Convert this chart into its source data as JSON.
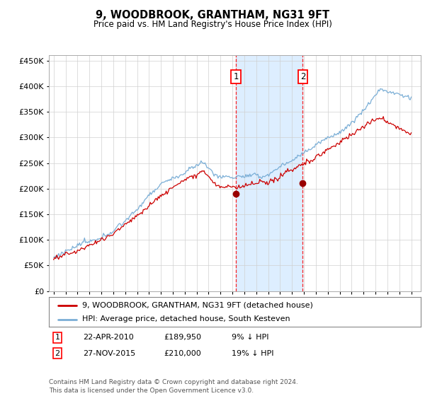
{
  "title": "9, WOODBROOK, GRANTHAM, NG31 9FT",
  "subtitle": "Price paid vs. HM Land Registry's House Price Index (HPI)",
  "legend_line1": "9, WOODBROOK, GRANTHAM, NG31 9FT (detached house)",
  "legend_line2": "HPI: Average price, detached house, South Kesteven",
  "footer": "Contains HM Land Registry data © Crown copyright and database right 2024.\nThis data is licensed under the Open Government Licence v3.0.",
  "sale1_label": "1",
  "sale1_date": "22-APR-2010",
  "sale1_price": "£189,950",
  "sale1_hpi": "9% ↓ HPI",
  "sale1_x": 2010.3,
  "sale1_y": 189950,
  "sale2_label": "2",
  "sale2_date": "27-NOV-2015",
  "sale2_price": "£210,000",
  "sale2_hpi": "19% ↓ HPI",
  "sale2_x": 2015.9,
  "sale2_y": 210000,
  "hpi_color": "#7aaed6",
  "price_color": "#cc0000",
  "sale_dot_color": "#990000",
  "background_color": "#ffffff",
  "highlight_color": "#ddeeff",
  "ylim": [
    0,
    460000
  ],
  "yticks": [
    0,
    50000,
    100000,
    150000,
    200000,
    250000,
    300000,
    350000,
    400000,
    450000
  ],
  "xmin": 1994.6,
  "xmax": 2025.8
}
